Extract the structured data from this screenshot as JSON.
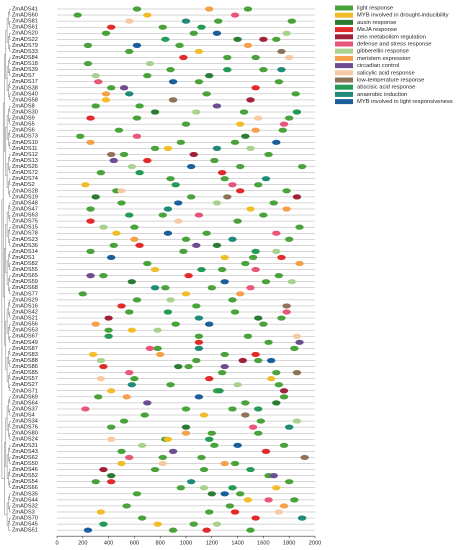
{
  "chart_data": {
    "type": "promoter-map",
    "categories": [
      "ZmADS41",
      "ZmADS60",
      "ZmADS81",
      "ZmADS61",
      "ZmADS20",
      "ZmADS22",
      "ZmADS79",
      "ZmADS33",
      "ZmADS84",
      "ZmADS18",
      "ZmADS39",
      "ZmADS7",
      "ZmADS17",
      "ZmADS38",
      "ZmADS40",
      "ZmADS58",
      "ZmADS8",
      "ZmADS30",
      "ZmADS9",
      "ZmADS5",
      "ZmADS6",
      "ZmADS73",
      "ZmADS10",
      "ZmADS11",
      "ZmADS12",
      "ZmADS13",
      "ZmADS26",
      "ZmADS72",
      "ZmADS74",
      "ZmADS2",
      "ZmADS28",
      "ZmADS19",
      "ZmADS48",
      "ZmADS47",
      "ZmADS63",
      "ZmADS75",
      "ZmADS15",
      "ZmADS78",
      "ZmADS23",
      "ZmADS36",
      "ZmADS14",
      "ZmADS1",
      "ZmADS82",
      "ZmADS55",
      "ZmADS65",
      "ZmADS59",
      "ZmADS68",
      "ZmADS77",
      "ZmADS29",
      "ZmADS16",
      "ZmADS42",
      "ZmADS21",
      "ZmADS56",
      "ZmADS53",
      "ZmADS67",
      "ZmADS49",
      "ZmADS87",
      "ZmADS83",
      "ZmADS88",
      "ZmADS86",
      "ZmADS85",
      "ZmADS57",
      "ZmADS27",
      "ZmADS71",
      "ZmADS69",
      "ZmADS64",
      "ZmADS37",
      "ZmADS4",
      "ZmADS34",
      "ZmADS76",
      "ZmADS80",
      "ZmADS24",
      "ZmADS31",
      "ZmADS43",
      "ZmADS62",
      "ZmADS50",
      "ZmADS46",
      "ZmADS52",
      "ZmADS54",
      "ZmADS66",
      "ZmADS35",
      "ZmADS44",
      "ZmADS32",
      "ZmADS3",
      "ZmADS70",
      "ZmADS45",
      "ZmADS51"
    ],
    "xlim": [
      0,
      2000
    ],
    "xticks": [
      0,
      200,
      400,
      600,
      800,
      1000,
      1200,
      1400,
      1600,
      1800,
      2000
    ],
    "series": [
      {
        "name": "light response",
        "color": "#49a23a",
        "y": [
          "ZmADS41",
          "ZmADS60",
          "ZmADS81",
          "ZmADS61",
          "ZmADS20",
          "ZmADS22",
          "ZmADS79",
          "ZmADS33",
          "ZmADS84",
          "ZmADS18",
          "ZmADS39",
          "ZmADS7",
          "ZmADS17",
          "ZmADS38",
          "ZmADS40",
          "ZmADS58",
          "ZmADS8",
          "ZmADS30",
          "ZmADS9",
          "ZmADS5",
          "ZmADS6",
          "ZmADS73",
          "ZmADS10",
          "ZmADS11",
          "ZmADS12",
          "ZmADS13",
          "ZmADS26",
          "ZmADS72",
          "ZmADS74",
          "ZmADS2",
          "ZmADS28",
          "ZmADS19",
          "ZmADS48",
          "ZmADS47",
          "ZmADS63",
          "ZmADS75",
          "ZmADS15",
          "ZmADS78",
          "ZmADS23",
          "ZmADS36",
          "ZmADS14",
          "ZmADS1",
          "ZmADS82",
          "ZmADS55",
          "ZmADS65",
          "ZmADS59",
          "ZmADS68",
          "ZmADS77",
          "ZmADS29",
          "ZmADS16",
          "ZmADS42",
          "ZmADS21",
          "ZmADS56",
          "ZmADS53",
          "ZmADS67",
          "ZmADS49",
          "ZmADS87",
          "ZmADS83",
          "ZmADS88",
          "ZmADS86",
          "ZmADS85",
          "ZmADS57",
          "ZmADS27",
          "ZmADS71",
          "ZmADS69",
          "ZmADS64",
          "ZmADS37",
          "ZmADS4",
          "ZmADS34",
          "ZmADS76",
          "ZmADS80",
          "ZmADS24",
          "ZmADS31",
          "ZmADS43",
          "ZmADS62",
          "ZmADS50",
          "ZmADS46",
          "ZmADS52",
          "ZmADS54",
          "ZmADS66",
          "ZmADS35",
          "ZmADS44",
          "ZmADS32",
          "ZmADS3",
          "ZmADS70",
          "ZmADS45",
          "ZmADS51",
          "ZmADS41",
          "ZmADS81",
          "ZmADS20",
          "ZmADS79",
          "ZmADS84",
          "ZmADS39",
          "ZmADS17",
          "ZmADS40",
          "ZmADS8",
          "ZmADS9",
          "ZmADS6",
          "ZmADS10",
          "ZmADS12",
          "ZmADS26",
          "ZmADS74",
          "ZmADS28",
          "ZmADS48",
          "ZmADS63",
          "ZmADS15",
          "ZmADS23",
          "ZmADS14",
          "ZmADS82",
          "ZmADS65",
          "ZmADS68",
          "ZmADS29",
          "ZmADS42",
          "ZmADS56",
          "ZmADS67",
          "ZmADS87",
          "ZmADS88",
          "ZmADS85",
          "ZmADS27",
          "ZmADS69",
          "ZmADS37",
          "ZmADS34",
          "ZmADS80",
          "ZmADS31",
          "ZmADS62",
          "ZmADS46",
          "ZmADS54",
          "ZmADS35",
          "ZmADS32",
          "ZmADS70",
          "ZmADS51"
        ],
        "x": [
          1480,
          160,
          1250,
          820,
          380,
          1700,
          950,
          560,
          1320,
          240,
          1600,
          700,
          1100,
          420,
          1850,
          900,
          300,
          1450,
          620,
          1000,
          1750,
          180,
          1380,
          760,
          520,
          1220,
          1900,
          340,
          880,
          1560,
          460,
          1040,
          1680,
          260,
          820,
          1400,
          600,
          1160,
          1800,
          440,
          980,
          1520,
          700,
          1280,
          360,
          1620,
          840,
          200,
          1360,
          1080,
          560,
          1740,
          920,
          400,
          1480,
          1640,
          780,
          1300,
          1560,
          1020,
          1700,
          600,
          880,
          1240,
          320,
          1460,
          1000,
          680,
          1580,
          420,
          1200,
          840,
          1760,
          500,
          1120,
          1380,
          760,
          1640,
          300,
          960,
          1420,
          1840,
          540,
          1180,
          1900,
          1060,
          1500,
          620,
          1820,
          1060,
          240,
          1540,
          880,
          1720,
          1160,
          640,
          1800,
          480,
          960,
          1640,
          1420,
          1300,
          1780,
          500,
          1600,
          1880,
          1000,
          260,
          1460,
          1720,
          1200,
          620,
          1380,
          1600,
          1100,
          1840,
          1080,
          1280,
          1720,
          1760,
          1360,
          520,
          1560,
          1220,
          820,
          1140,
          1800,
          620,
          1340,
          660,
          900
        ]
      },
      {
        "name": "MYB involved in drought-inducibility",
        "color": "#f2bd2a",
        "y": [
          "ZmADS60",
          "ZmADS33",
          "ZmADS58",
          "ZmADS5",
          "ZmADS11",
          "ZmADS2",
          "ZmADS47",
          "ZmADS78",
          "ZmADS1",
          "ZmADS55",
          "ZmADS77",
          "ZmADS53",
          "ZmADS83",
          "ZmADS57",
          "ZmADS71",
          "ZmADS4",
          "ZmADS24",
          "ZmADS50",
          "ZmADS66",
          "ZmADS3",
          "ZmADS44",
          "ZmADS45"
        ],
        "x": [
          700,
          1100,
          380,
          1420,
          860,
          220,
          1500,
          460,
          1300,
          760,
          1000,
          580,
          280,
          1660,
          420,
          1140,
          860,
          500,
          1700,
          340,
          1480,
          780
        ]
      },
      {
        "name": "auxin response",
        "color": "#2c7a34",
        "y": [
          "ZmADS22",
          "ZmADS7",
          "ZmADS30",
          "ZmADS73",
          "ZmADS19",
          "ZmADS36",
          "ZmADS59",
          "ZmADS21",
          "ZmADS86",
          "ZmADS64",
          "ZmADS76",
          "ZmADS52",
          "ZmADS35"
        ],
        "x": [
          1400,
          1180,
          760,
          1460,
          300,
          1240,
          580,
          1560,
          940,
          1700,
          1000,
          420,
          1200
        ]
      },
      {
        "name": "MeJA response",
        "color": "#e22a2a",
        "y": [
          "ZmADS61",
          "ZmADS84",
          "ZmADS38",
          "ZmADS9",
          "ZmADS13",
          "ZmADS72",
          "ZmADS28",
          "ZmADS75",
          "ZmADS36",
          "ZmADS1",
          "ZmADS65",
          "ZmADS16",
          "ZmADS49",
          "ZmADS83",
          "ZmADS86",
          "ZmADS57",
          "ZmADS43",
          "ZmADS54",
          "ZmADS3",
          "ZmADS70",
          "ZmADS51"
        ],
        "x": [
          420,
          980,
          1540,
          260,
          700,
          1280,
          1420,
          260,
          640,
          1740,
          1020,
          500,
          1100,
          1540,
          360,
          1180,
          1620,
          420,
          1380,
          1540,
          1160
        ]
      },
      {
        "name": "zein metabolism regulation",
        "color": "#a0213a",
        "y": [
          "ZmADS22",
          "ZmADS58",
          "ZmADS12",
          "ZmADS19",
          "ZmADS21",
          "ZmADS88",
          "ZmADS71",
          "ZmADS46"
        ],
        "x": [
          1600,
          1500,
          1060,
          1860,
          400,
          1440,
          1760,
          360
        ]
      },
      {
        "name": "defense and stress response",
        "color": "#e8577a",
        "y": [
          "ZmADS60",
          "ZmADS17",
          "ZmADS5",
          "ZmADS73",
          "ZmADS2",
          "ZmADS63",
          "ZmADS78",
          "ZmADS55",
          "ZmADS68",
          "ZmADS42",
          "ZmADS87",
          "ZmADS85",
          "ZmADS37",
          "ZmADS76",
          "ZmADS62",
          "ZmADS44"
        ],
        "x": [
          1380,
          320,
          1760,
          620,
          1360,
          1100,
          1700,
          1540,
          1500,
          1780,
          720,
          560,
          220,
          1520,
          560,
          1640
        ]
      },
      {
        "name": "gibberellin response",
        "color": "#a8d18d",
        "y": [
          "ZmADS20",
          "ZmADS18",
          "ZmADS7",
          "ZmADS30",
          "ZmADS11",
          "ZmADS26",
          "ZmADS48",
          "ZmADS15",
          "ZmADS14",
          "ZmADS59",
          "ZmADS29",
          "ZmADS53",
          "ZmADS88",
          "ZmADS27",
          "ZmADS34",
          "ZmADS31",
          "ZmADS66",
          "ZmADS45"
        ],
        "x": [
          1780,
          720,
          300,
          1080,
          1500,
          580,
          1240,
          360,
          1700,
          1820,
          880,
          780,
          340,
          1400,
          1860,
          660,
          1140,
          1240
        ]
      },
      {
        "name": "meristem expression",
        "color": "#f5a04a",
        "y": [
          "ZmADS41",
          "ZmADS79",
          "ZmADS40",
          "ZmADS6",
          "ZmADS10",
          "ZmADS47",
          "ZmADS23",
          "ZmADS82",
          "ZmADS77",
          "ZmADS56",
          "ZmADS83",
          "ZmADS69",
          "ZmADS80",
          "ZmADS50",
          "ZmADS32"
        ],
        "x": [
          1180,
          1480,
          380,
          1540,
          260,
          1780,
          600,
          1880,
          1420,
          300,
          800,
          540,
          1000,
          1300,
          1760
        ]
      },
      {
        "name": "circadian control",
        "color": "#6d4c91",
        "y": [
          "ZmADS38",
          "ZmADS8",
          "ZmADS13",
          "ZmADS36",
          "ZmADS65",
          "ZmADS49",
          "ZmADS86",
          "ZmADS64",
          "ZmADS43",
          "ZmADS52"
        ],
        "x": [
          520,
          1240,
          440,
          1080,
          260,
          1880,
          1300,
          700,
          900,
          1680
        ]
      },
      {
        "name": "salicylic acid response",
        "color": "#f6c9a4",
        "y": [
          "ZmADS81",
          "ZmADS84",
          "ZmADS9",
          "ZmADS28",
          "ZmADS75",
          "ZmADS67",
          "ZmADS57",
          "ZmADS24",
          "ZmADS3",
          "ZmADS50"
        ],
        "x": [
          560,
          1800,
          1560,
          500,
          940,
          1860,
          340,
          420,
          1720,
          820
        ]
      },
      {
        "name": "low-temperature response",
        "color": "#8f7358",
        "y": [
          "ZmADS33",
          "ZmADS58",
          "ZmADS12",
          "ZmADS19",
          "ZmADS16",
          "ZmADS85",
          "ZmADS4",
          "ZmADS62"
        ],
        "x": [
          1740,
          900,
          420,
          1320,
          1780,
          1860,
          1460,
          1920
        ]
      },
      {
        "name": "abscisic acid response",
        "color": "#259a55",
        "y": [
          "ZmADS61",
          "ZmADS22",
          "ZmADS39",
          "ZmADS30",
          "ZmADS72",
          "ZmADS2",
          "ZmADS63",
          "ZmADS14",
          "ZmADS55",
          "ZmADS42",
          "ZmADS67",
          "ZmADS71",
          "ZmADS37",
          "ZmADS24",
          "ZmADS46",
          "ZmADS66",
          "ZmADS45"
        ],
        "x": [
          1120,
          840,
          1320,
          1860,
          640,
          920,
          560,
          1540,
          1120,
          860,
          400,
          1260,
          1560,
          1180,
          1500,
          1360,
          360
        ]
      },
      {
        "name": "anaerobic induction",
        "color": "#1f8a78",
        "y": [
          "ZmADS81",
          "ZmADS39",
          "ZmADS40",
          "ZmADS11",
          "ZmADS74",
          "ZmADS47",
          "ZmADS23",
          "ZmADS68",
          "ZmADS21",
          "ZmADS87",
          "ZmADS27",
          "ZmADS76",
          "ZmADS54",
          "ZmADS70"
        ],
        "x": [
          1000,
          1740,
          560,
          1240,
          1620,
          860,
          1360,
          760,
          1100,
          1100,
          580,
          1800,
          1040,
          1900
        ]
      },
      {
        "name": "MYB involved in light responsiveness",
        "color": "#1a5e9a",
        "y": [
          "ZmADS20",
          "ZmADS79",
          "ZmADS17",
          "ZmADS10",
          "ZmADS26",
          "ZmADS48",
          "ZmADS78",
          "ZmADS1",
          "ZmADS59",
          "ZmADS56",
          "ZmADS88",
          "ZmADS69",
          "ZmADS31",
          "ZmADS35",
          "ZmADS51"
        ],
        "x": [
          1240,
          620,
          900,
          1700,
          1040,
          940,
          860,
          420,
          1300,
          1180,
          1660,
          1100,
          1400,
          1300,
          240
        ]
      }
    ]
  }
}
